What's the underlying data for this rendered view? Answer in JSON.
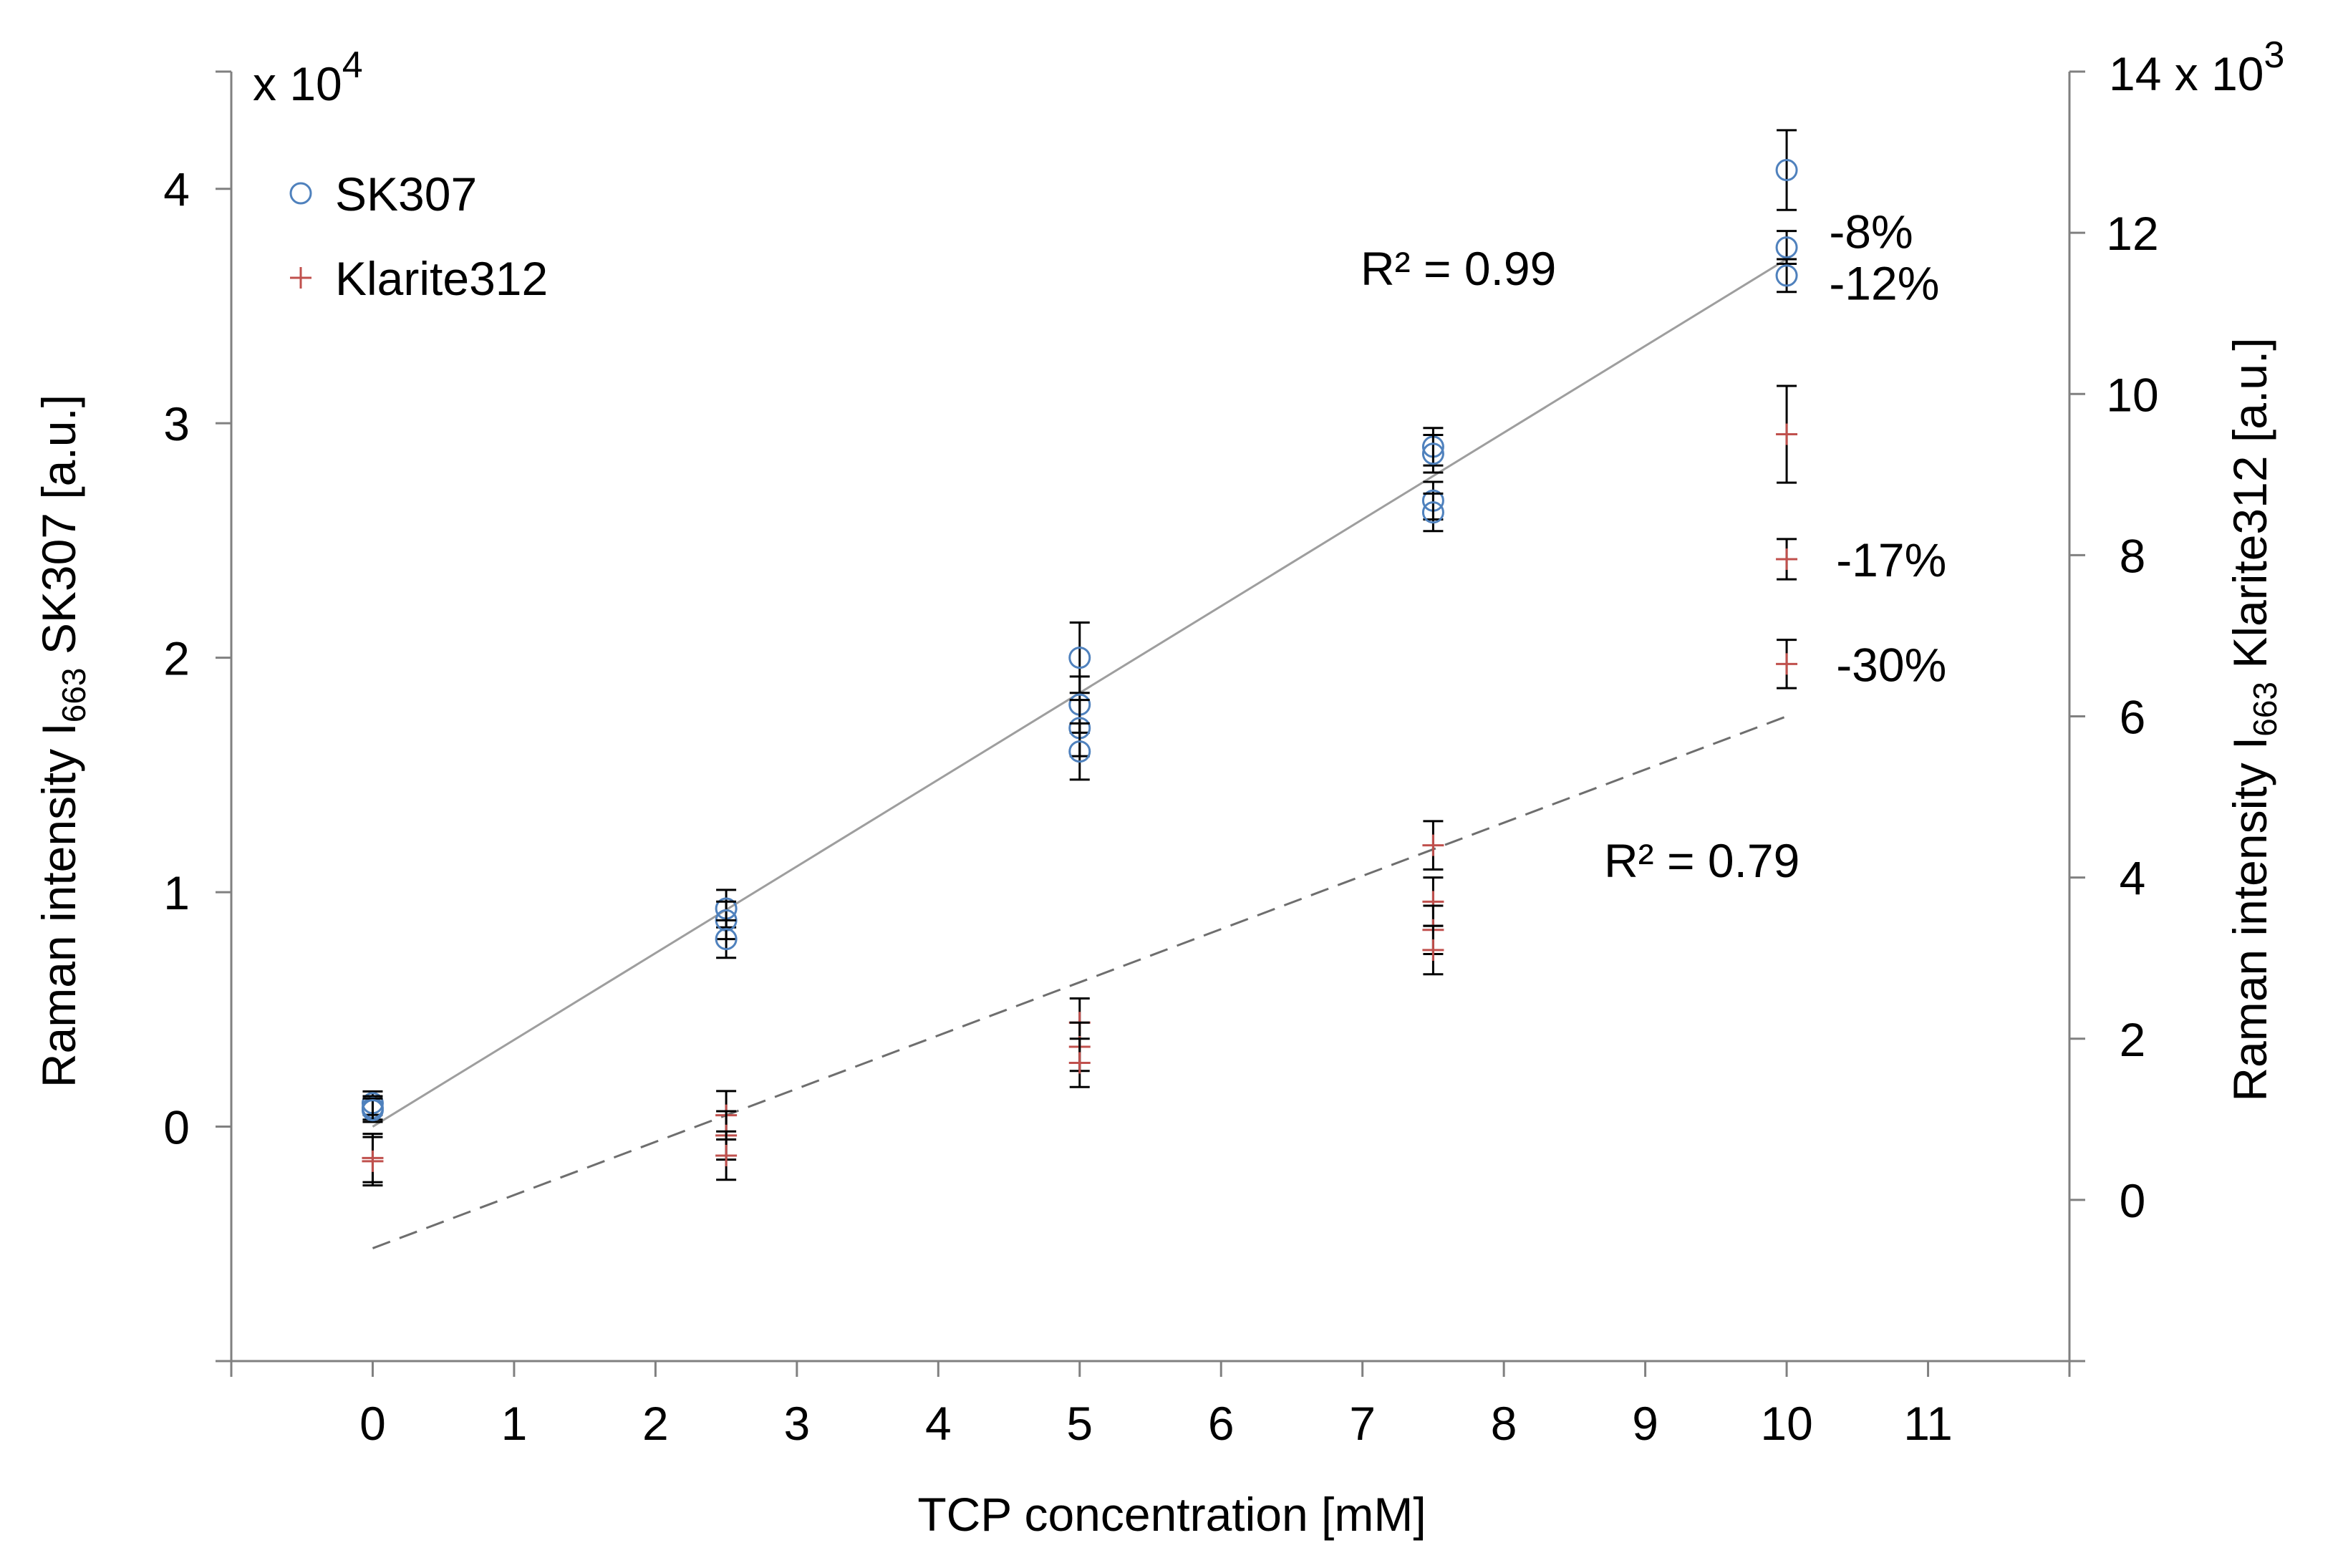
{
  "chart_data": {
    "type": "scatter",
    "title": "",
    "xlabel": "TCP concentration [mM]",
    "xlim": [
      -1,
      12
    ],
    "xticks": [
      0,
      1,
      2,
      3,
      4,
      5,
      6,
      7,
      8,
      9,
      10,
      11
    ],
    "y_left": {
      "label_main": "Raman intensity I",
      "label_sub": "663",
      "label_suffix": "SK307 [a.u.]",
      "ylim": [
        -1,
        4.5
      ],
      "ticks": [
        0,
        1,
        2,
        3,
        4
      ],
      "exponent_label": "x 10",
      "exponent_power": "4"
    },
    "y_right": {
      "label_main": "Raman intensity I",
      "label_sub": "663",
      "label_suffix": "Klarite312 [a.u.]",
      "ylim": [
        -2,
        14
      ],
      "ticks": [
        0,
        2,
        4,
        6,
        8,
        10,
        12,
        14
      ],
      "exponent_label": "x 10",
      "exponent_power": "3"
    },
    "series": [
      {
        "name": "SK307",
        "axis": "left",
        "marker": "circle",
        "color": "#4F81BD",
        "points": [
          {
            "x": 0,
            "y": 0.1,
            "err": 0.05
          },
          {
            "x": 0,
            "y": 0.08,
            "err": 0.05
          },
          {
            "x": 0,
            "y": 0.07,
            "err": 0.05
          },
          {
            "x": 2.5,
            "y": 0.93,
            "err": 0.08
          },
          {
            "x": 2.5,
            "y": 0.88,
            "err": 0.08
          },
          {
            "x": 2.5,
            "y": 0.8,
            "err": 0.08
          },
          {
            "x": 5,
            "y": 2.0,
            "err": 0.15
          },
          {
            "x": 5,
            "y": 1.8,
            "err": 0.12
          },
          {
            "x": 5,
            "y": 1.7,
            "err": 0.12
          },
          {
            "x": 5,
            "y": 1.6,
            "err": 0.12
          },
          {
            "x": 7.5,
            "y": 2.9,
            "err": 0.08
          },
          {
            "x": 7.5,
            "y": 2.87,
            "err": 0.08
          },
          {
            "x": 7.5,
            "y": 2.67,
            "err": 0.08
          },
          {
            "x": 7.5,
            "y": 2.62,
            "err": 0.08
          },
          {
            "x": 10,
            "y": 4.08,
            "err": 0.17
          },
          {
            "x": 10,
            "y": 3.75,
            "err": 0.07
          },
          {
            "x": 10,
            "y": 3.63,
            "err": 0.07
          }
        ]
      },
      {
        "name": "Klarite312",
        "axis": "right",
        "marker": "plus",
        "color": "#C0504D",
        "points": [
          {
            "x": 0,
            "y": 0.52,
            "err": 0.3
          },
          {
            "x": 0,
            "y": 0.48,
            "err": 0.3
          },
          {
            "x": 2.5,
            "y": 1.05,
            "err": 0.3
          },
          {
            "x": 2.5,
            "y": 0.8,
            "err": 0.3
          },
          {
            "x": 2.5,
            "y": 0.55,
            "err": 0.3
          },
          {
            "x": 5,
            "y": 2.2,
            "err": 0.3
          },
          {
            "x": 5,
            "y": 1.9,
            "err": 0.3
          },
          {
            "x": 5,
            "y": 1.7,
            "err": 0.3
          },
          {
            "x": 7.5,
            "y": 4.4,
            "err": 0.3
          },
          {
            "x": 7.5,
            "y": 3.7,
            "err": 0.3
          },
          {
            "x": 7.5,
            "y": 3.35,
            "err": 0.3
          },
          {
            "x": 7.5,
            "y": 3.1,
            "err": 0.3
          },
          {
            "x": 10,
            "y": 9.5,
            "err": 0.6
          },
          {
            "x": 10,
            "y": 7.95,
            "err": 0.25
          },
          {
            "x": 10,
            "y": 6.65,
            "err": 0.3
          }
        ]
      }
    ],
    "fits": [
      {
        "series": "SK307",
        "axis": "left",
        "x0": 0,
        "y0": 0.0,
        "x1": 10,
        "y1": 3.7,
        "style": "solid",
        "color": "#9e9e9e",
        "r2_label": "R² = 0.99"
      },
      {
        "series": "Klarite312",
        "axis": "right",
        "x0": 0,
        "y0": -0.6,
        "x1": 10,
        "y1": 6.0,
        "style": "dashed",
        "color": "#6e6e6e",
        "r2_label": "R² = 0.79"
      }
    ],
    "annotations": [
      {
        "text": "-8%",
        "axis": "left",
        "x": 10.3,
        "y": 3.82
      },
      {
        "text": "-12%",
        "axis": "left",
        "x": 10.3,
        "y": 3.6
      },
      {
        "text": "-17%",
        "axis": "right",
        "x": 10.35,
        "y": 7.95
      },
      {
        "text": "-30%",
        "axis": "right",
        "x": 10.35,
        "y": 6.65
      }
    ],
    "legend": {
      "position": "top-left"
    }
  }
}
